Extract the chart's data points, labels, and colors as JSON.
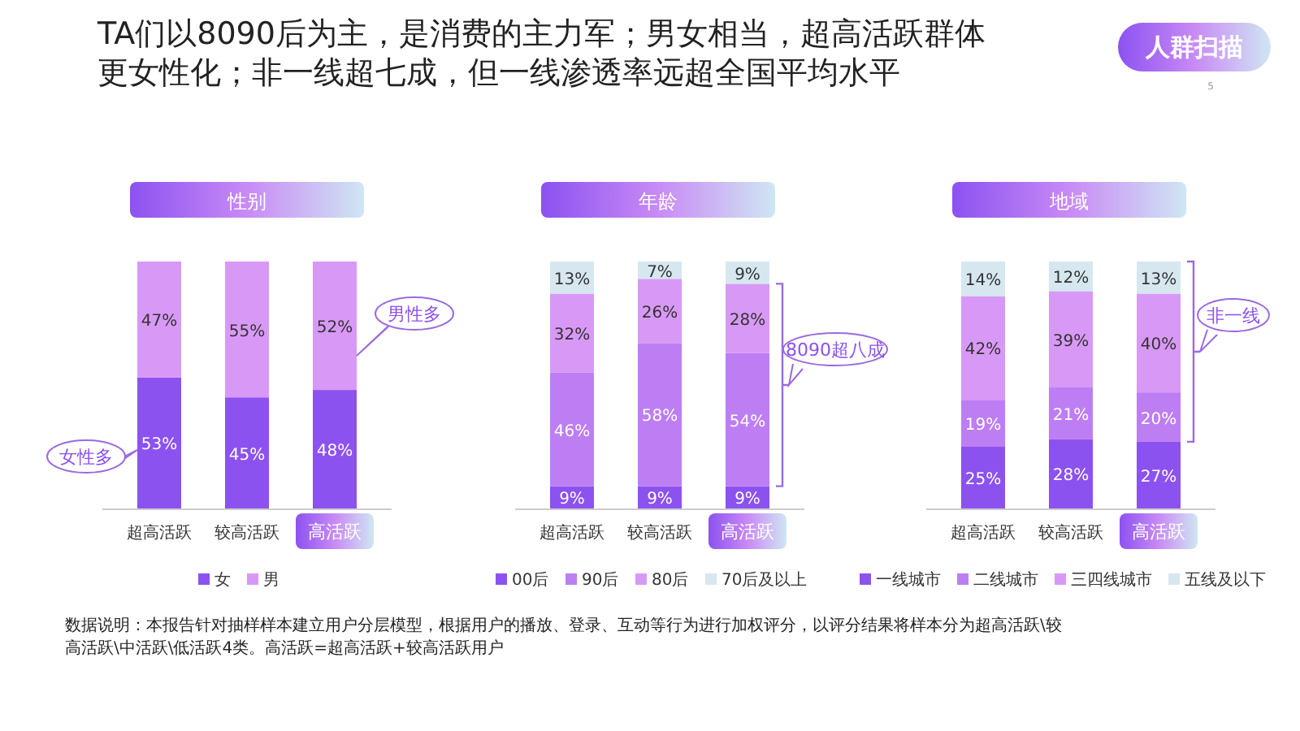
{
  "chart_data": [
    {
      "type": "other",
      "title": "TA们以8090后为主，是消费的主力军；男女相当，超高活跃群体更女性化；非一线超七成，但一线渗透率远超全国平均水平",
      "annotations": [
        "人群扫描",
        "5",
        "数据说明：本报告针对抽样样本建立用户分层模型，根据用户的播放、登录、互动等行为进行加权评分，以评分结果将样本分为超高活跃\\较高活跃\\中活跃\\低活跃4类。高活跃=超高活跃+较高活跃用户"
      ]
    },
    {
      "type": "bar",
      "stacked": true,
      "title": "性别",
      "categories": [
        "超高活跃",
        "较高活跃",
        "高活跃"
      ],
      "legend": "bottom",
      "annotations": [
        "女性多",
        "男性多"
      ],
      "series": [
        {
          "name": "女",
          "color": "#8c52f0",
          "values": [
            53,
            45,
            48
          ],
          "value_labels": [
            "53%",
            "45%",
            "48%"
          ]
        },
        {
          "name": "男",
          "color": "#d899f6",
          "values": [
            47,
            55,
            52
          ],
          "value_labels": [
            "47%",
            "55%",
            "52%"
          ]
        }
      ]
    },
    {
      "type": "bar",
      "stacked": true,
      "title": "年龄",
      "categories": [
        "超高活跃",
        "较高活跃",
        "高活跃"
      ],
      "legend": "bottom",
      "annotations": [
        "8090超八成"
      ],
      "series": [
        {
          "name": "00后",
          "color": "#8c52f0",
          "values": [
            9,
            9,
            9
          ],
          "value_labels": [
            "9%",
            "9%",
            "9%"
          ]
        },
        {
          "name": "90后",
          "color": "#bd7ef3",
          "values": [
            46,
            58,
            54
          ],
          "value_labels": [
            "46%",
            "58%",
            "54%"
          ]
        },
        {
          "name": "80后",
          "color": "#d899f6",
          "values": [
            32,
            26,
            28
          ],
          "value_labels": [
            "32%",
            "26%",
            "28%"
          ]
        },
        {
          "name": "70后及以上",
          "color": "#d6e7ef",
          "values": [
            13,
            7,
            9
          ],
          "value_labels": [
            "13%",
            "7%",
            "9%"
          ]
        }
      ]
    },
    {
      "type": "bar",
      "stacked": true,
      "title": "地域",
      "categories": [
        "超高活跃",
        "较高活跃",
        "高活跃"
      ],
      "legend": "bottom",
      "annotations": [
        "非一线"
      ],
      "series": [
        {
          "name": "一线城市",
          "color": "#8c52f0",
          "values": [
            25,
            28,
            27
          ],
          "value_labels": [
            "25%",
            "28%",
            "27%"
          ]
        },
        {
          "name": "二线城市",
          "color": "#bd7ef3",
          "values": [
            19,
            21,
            20
          ],
          "value_labels": [
            "19%",
            "21%",
            "20%"
          ]
        },
        {
          "name": "三四线城市",
          "color": "#d899f6",
          "values": [
            42,
            39,
            40
          ],
          "value_labels": [
            "42%",
            "39%",
            "40%"
          ]
        },
        {
          "name": "五线及以下",
          "color": "#d6e7ef",
          "values": [
            14,
            12,
            13
          ],
          "value_labels": [
            "14%",
            "12%",
            "13%"
          ]
        }
      ]
    }
  ]
}
